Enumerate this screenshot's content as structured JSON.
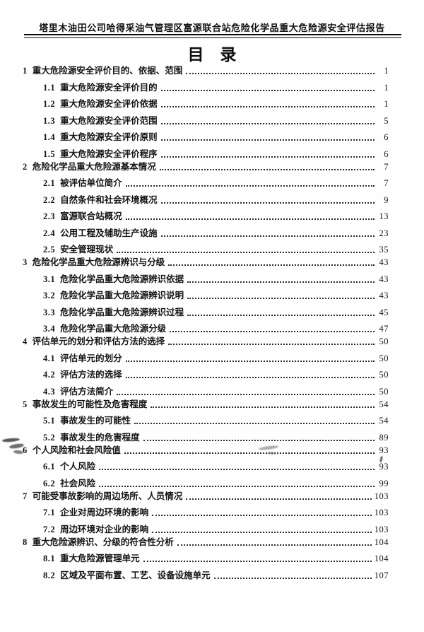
{
  "header": {
    "title": "塔里木油田公司哈得采油气管理区富源联合站危险化学品重大危险源安全评估报告"
  },
  "toc": {
    "title": "目　录",
    "items": [
      {
        "level": 1,
        "num": "1",
        "title": "重大危险源安全评价目的、依据、范围",
        "page": "1"
      },
      {
        "level": 2,
        "num": "1.1",
        "title": "重大危险源安全评价目的",
        "page": "1"
      },
      {
        "level": 2,
        "num": "1.2",
        "title": "重大危险源安全评价依据",
        "page": "1"
      },
      {
        "level": 2,
        "num": "1.3",
        "title": "重大危险源安全评价范围",
        "page": "5"
      },
      {
        "level": 2,
        "num": "1.4",
        "title": "重大危险源安全评价原则",
        "page": "6"
      },
      {
        "level": 2,
        "num": "1.5",
        "title": "重大危险源安全评价程序",
        "page": "6"
      },
      {
        "level": 1,
        "num": "2",
        "title": "危险化学品重大危险源基本情况",
        "page": "7"
      },
      {
        "level": 2,
        "num": "2.1",
        "title": "被评估单位简介",
        "page": "7"
      },
      {
        "level": 2,
        "num": "2.2",
        "title": "自然条件和社会环境概况",
        "page": "9"
      },
      {
        "level": 2,
        "num": "2.3",
        "title": "富源联合站概况",
        "page": "13"
      },
      {
        "level": 2,
        "num": "2.4",
        "title": "公用工程及辅助生产设施",
        "page": "23"
      },
      {
        "level": 2,
        "num": "2.5",
        "title": "安全管理现状",
        "page": "35"
      },
      {
        "level": 1,
        "num": "3",
        "title": "危险化学品重大危险源辨识与分级",
        "page": "43"
      },
      {
        "level": 2,
        "num": "3.1",
        "title": "危险化学品重大危险源辨识依据",
        "page": "43"
      },
      {
        "level": 2,
        "num": "3.2",
        "title": "危险化学品重大危险源辨识说明",
        "page": "43"
      },
      {
        "level": 2,
        "num": "3.3",
        "title": "危险化学品重大危险源辨识过程",
        "page": "45"
      },
      {
        "level": 2,
        "num": "3.4",
        "title": "危险化学品重大危险源分级",
        "page": "47"
      },
      {
        "level": 1,
        "num": "4",
        "title": "评估单元的划分和评估方法的选择",
        "page": "50"
      },
      {
        "level": 2,
        "num": "4.1",
        "title": "评估单元的划分",
        "page": "50"
      },
      {
        "level": 2,
        "num": "4.2",
        "title": "评估方法的选择",
        "page": "50"
      },
      {
        "level": 2,
        "num": "4.3",
        "title": "评估方法简介",
        "page": "50"
      },
      {
        "level": 1,
        "num": "5",
        "title": "事故发生的可能性及危害程度",
        "page": "54"
      },
      {
        "level": 2,
        "num": "5.1",
        "title": "事故发生的可能性",
        "page": "54"
      },
      {
        "level": 2,
        "num": "5.2",
        "title": "事故发生的危害程度",
        "page": "89"
      },
      {
        "level": 1,
        "num": "6",
        "title": "个人风险和社会风险值",
        "page": "93"
      },
      {
        "level": 2,
        "num": "6.1",
        "title": "个人风险",
        "page": "93"
      },
      {
        "level": 2,
        "num": "6.2",
        "title": "社会风险",
        "page": "99"
      },
      {
        "level": 1,
        "num": "7",
        "title": "可能受事故影响的周边场所、人员情况",
        "page": "103"
      },
      {
        "level": 2,
        "num": "7.1",
        "title": "企业对周边环境的影响",
        "page": "103"
      },
      {
        "level": 2,
        "num": "7.2",
        "title": "周边环境对企业的影响",
        "page": "103"
      },
      {
        "level": 1,
        "num": "8",
        "title": "重大危险源辨识、分级的符合性分析",
        "page": "104"
      },
      {
        "level": 2,
        "num": "8.1",
        "title": "重大危险源管理单元",
        "page": "104"
      },
      {
        "level": 2,
        "num": "8.2",
        "title": "区域及平面布置、工艺、设备设施单元",
        "page": "107"
      }
    ]
  }
}
